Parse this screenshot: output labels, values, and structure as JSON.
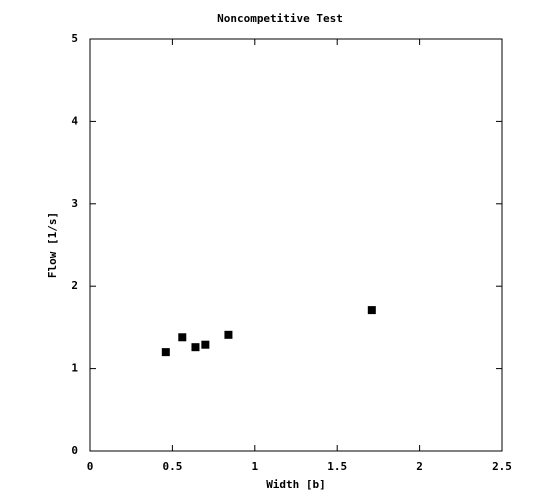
{
  "chart_data": {
    "type": "scatter",
    "title": "Noncompetitive Test",
    "x_label": "Width [b]",
    "y_label": "Flow [1/s]",
    "series": [
      {
        "color": "#000000",
        "x": [
          0.46,
          0.56,
          0.64,
          0.7,
          0.84,
          1.71
        ],
        "values": [
          1.2,
          1.38,
          1.26,
          1.29,
          1.41,
          1.71
        ]
      }
    ],
    "xlim": [
      0,
      2.5
    ],
    "xticks": [
      0,
      0.5,
      1,
      1.5,
      2,
      2.5
    ],
    "ylim": [
      0,
      5
    ],
    "yticks": [
      0,
      1,
      2,
      3,
      4,
      5
    ],
    "grid": false
  }
}
